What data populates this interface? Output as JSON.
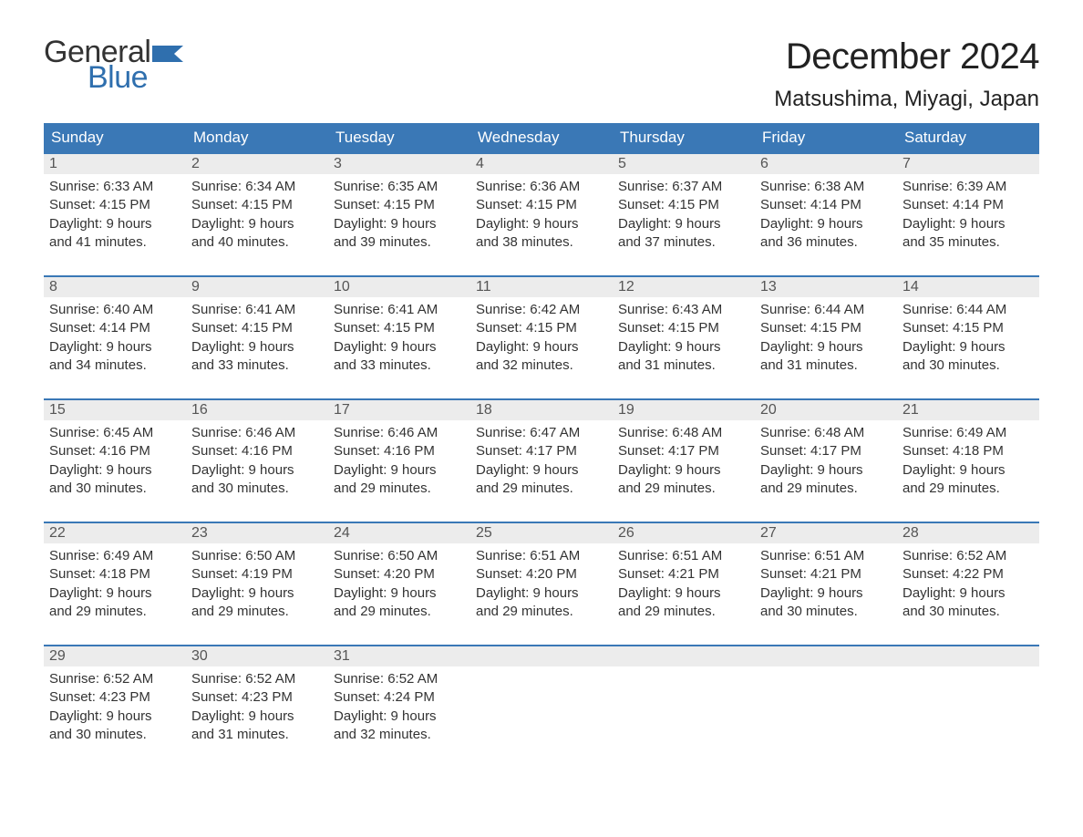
{
  "logo": {
    "general": "General",
    "blue": "Blue",
    "flag_color": "#2f6fae"
  },
  "title": "December 2024",
  "location": "Matsushima, Miyagi, Japan",
  "colors": {
    "header_bg": "#3a78b6",
    "header_text": "#ffffff",
    "daynum_bg": "#ececec",
    "border": "#3a78b6",
    "text": "#333333",
    "logo_blue": "#2f6fae"
  },
  "day_names": [
    "Sunday",
    "Monday",
    "Tuesday",
    "Wednesday",
    "Thursday",
    "Friday",
    "Saturday"
  ],
  "weeks": [
    [
      {
        "n": "1",
        "sunrise": "Sunrise: 6:33 AM",
        "sunset": "Sunset: 4:15 PM",
        "d1": "Daylight: 9 hours",
        "d2": "and 41 minutes."
      },
      {
        "n": "2",
        "sunrise": "Sunrise: 6:34 AM",
        "sunset": "Sunset: 4:15 PM",
        "d1": "Daylight: 9 hours",
        "d2": "and 40 minutes."
      },
      {
        "n": "3",
        "sunrise": "Sunrise: 6:35 AM",
        "sunset": "Sunset: 4:15 PM",
        "d1": "Daylight: 9 hours",
        "d2": "and 39 minutes."
      },
      {
        "n": "4",
        "sunrise": "Sunrise: 6:36 AM",
        "sunset": "Sunset: 4:15 PM",
        "d1": "Daylight: 9 hours",
        "d2": "and 38 minutes."
      },
      {
        "n": "5",
        "sunrise": "Sunrise: 6:37 AM",
        "sunset": "Sunset: 4:15 PM",
        "d1": "Daylight: 9 hours",
        "d2": "and 37 minutes."
      },
      {
        "n": "6",
        "sunrise": "Sunrise: 6:38 AM",
        "sunset": "Sunset: 4:14 PM",
        "d1": "Daylight: 9 hours",
        "d2": "and 36 minutes."
      },
      {
        "n": "7",
        "sunrise": "Sunrise: 6:39 AM",
        "sunset": "Sunset: 4:14 PM",
        "d1": "Daylight: 9 hours",
        "d2": "and 35 minutes."
      }
    ],
    [
      {
        "n": "8",
        "sunrise": "Sunrise: 6:40 AM",
        "sunset": "Sunset: 4:14 PM",
        "d1": "Daylight: 9 hours",
        "d2": "and 34 minutes."
      },
      {
        "n": "9",
        "sunrise": "Sunrise: 6:41 AM",
        "sunset": "Sunset: 4:15 PM",
        "d1": "Daylight: 9 hours",
        "d2": "and 33 minutes."
      },
      {
        "n": "10",
        "sunrise": "Sunrise: 6:41 AM",
        "sunset": "Sunset: 4:15 PM",
        "d1": "Daylight: 9 hours",
        "d2": "and 33 minutes."
      },
      {
        "n": "11",
        "sunrise": "Sunrise: 6:42 AM",
        "sunset": "Sunset: 4:15 PM",
        "d1": "Daylight: 9 hours",
        "d2": "and 32 minutes."
      },
      {
        "n": "12",
        "sunrise": "Sunrise: 6:43 AM",
        "sunset": "Sunset: 4:15 PM",
        "d1": "Daylight: 9 hours",
        "d2": "and 31 minutes."
      },
      {
        "n": "13",
        "sunrise": "Sunrise: 6:44 AM",
        "sunset": "Sunset: 4:15 PM",
        "d1": "Daylight: 9 hours",
        "d2": "and 31 minutes."
      },
      {
        "n": "14",
        "sunrise": "Sunrise: 6:44 AM",
        "sunset": "Sunset: 4:15 PM",
        "d1": "Daylight: 9 hours",
        "d2": "and 30 minutes."
      }
    ],
    [
      {
        "n": "15",
        "sunrise": "Sunrise: 6:45 AM",
        "sunset": "Sunset: 4:16 PM",
        "d1": "Daylight: 9 hours",
        "d2": "and 30 minutes."
      },
      {
        "n": "16",
        "sunrise": "Sunrise: 6:46 AM",
        "sunset": "Sunset: 4:16 PM",
        "d1": "Daylight: 9 hours",
        "d2": "and 30 minutes."
      },
      {
        "n": "17",
        "sunrise": "Sunrise: 6:46 AM",
        "sunset": "Sunset: 4:16 PM",
        "d1": "Daylight: 9 hours",
        "d2": "and 29 minutes."
      },
      {
        "n": "18",
        "sunrise": "Sunrise: 6:47 AM",
        "sunset": "Sunset: 4:17 PM",
        "d1": "Daylight: 9 hours",
        "d2": "and 29 minutes."
      },
      {
        "n": "19",
        "sunrise": "Sunrise: 6:48 AM",
        "sunset": "Sunset: 4:17 PM",
        "d1": "Daylight: 9 hours",
        "d2": "and 29 minutes."
      },
      {
        "n": "20",
        "sunrise": "Sunrise: 6:48 AM",
        "sunset": "Sunset: 4:17 PM",
        "d1": "Daylight: 9 hours",
        "d2": "and 29 minutes."
      },
      {
        "n": "21",
        "sunrise": "Sunrise: 6:49 AM",
        "sunset": "Sunset: 4:18 PM",
        "d1": "Daylight: 9 hours",
        "d2": "and 29 minutes."
      }
    ],
    [
      {
        "n": "22",
        "sunrise": "Sunrise: 6:49 AM",
        "sunset": "Sunset: 4:18 PM",
        "d1": "Daylight: 9 hours",
        "d2": "and 29 minutes."
      },
      {
        "n": "23",
        "sunrise": "Sunrise: 6:50 AM",
        "sunset": "Sunset: 4:19 PM",
        "d1": "Daylight: 9 hours",
        "d2": "and 29 minutes."
      },
      {
        "n": "24",
        "sunrise": "Sunrise: 6:50 AM",
        "sunset": "Sunset: 4:20 PM",
        "d1": "Daylight: 9 hours",
        "d2": "and 29 minutes."
      },
      {
        "n": "25",
        "sunrise": "Sunrise: 6:51 AM",
        "sunset": "Sunset: 4:20 PM",
        "d1": "Daylight: 9 hours",
        "d2": "and 29 minutes."
      },
      {
        "n": "26",
        "sunrise": "Sunrise: 6:51 AM",
        "sunset": "Sunset: 4:21 PM",
        "d1": "Daylight: 9 hours",
        "d2": "and 29 minutes."
      },
      {
        "n": "27",
        "sunrise": "Sunrise: 6:51 AM",
        "sunset": "Sunset: 4:21 PM",
        "d1": "Daylight: 9 hours",
        "d2": "and 30 minutes."
      },
      {
        "n": "28",
        "sunrise": "Sunrise: 6:52 AM",
        "sunset": "Sunset: 4:22 PM",
        "d1": "Daylight: 9 hours",
        "d2": "and 30 minutes."
      }
    ],
    [
      {
        "n": "29",
        "sunrise": "Sunrise: 6:52 AM",
        "sunset": "Sunset: 4:23 PM",
        "d1": "Daylight: 9 hours",
        "d2": "and 30 minutes."
      },
      {
        "n": "30",
        "sunrise": "Sunrise: 6:52 AM",
        "sunset": "Sunset: 4:23 PM",
        "d1": "Daylight: 9 hours",
        "d2": "and 31 minutes."
      },
      {
        "n": "31",
        "sunrise": "Sunrise: 6:52 AM",
        "sunset": "Sunset: 4:24 PM",
        "d1": "Daylight: 9 hours",
        "d2": "and 32 minutes."
      },
      null,
      null,
      null,
      null
    ]
  ]
}
